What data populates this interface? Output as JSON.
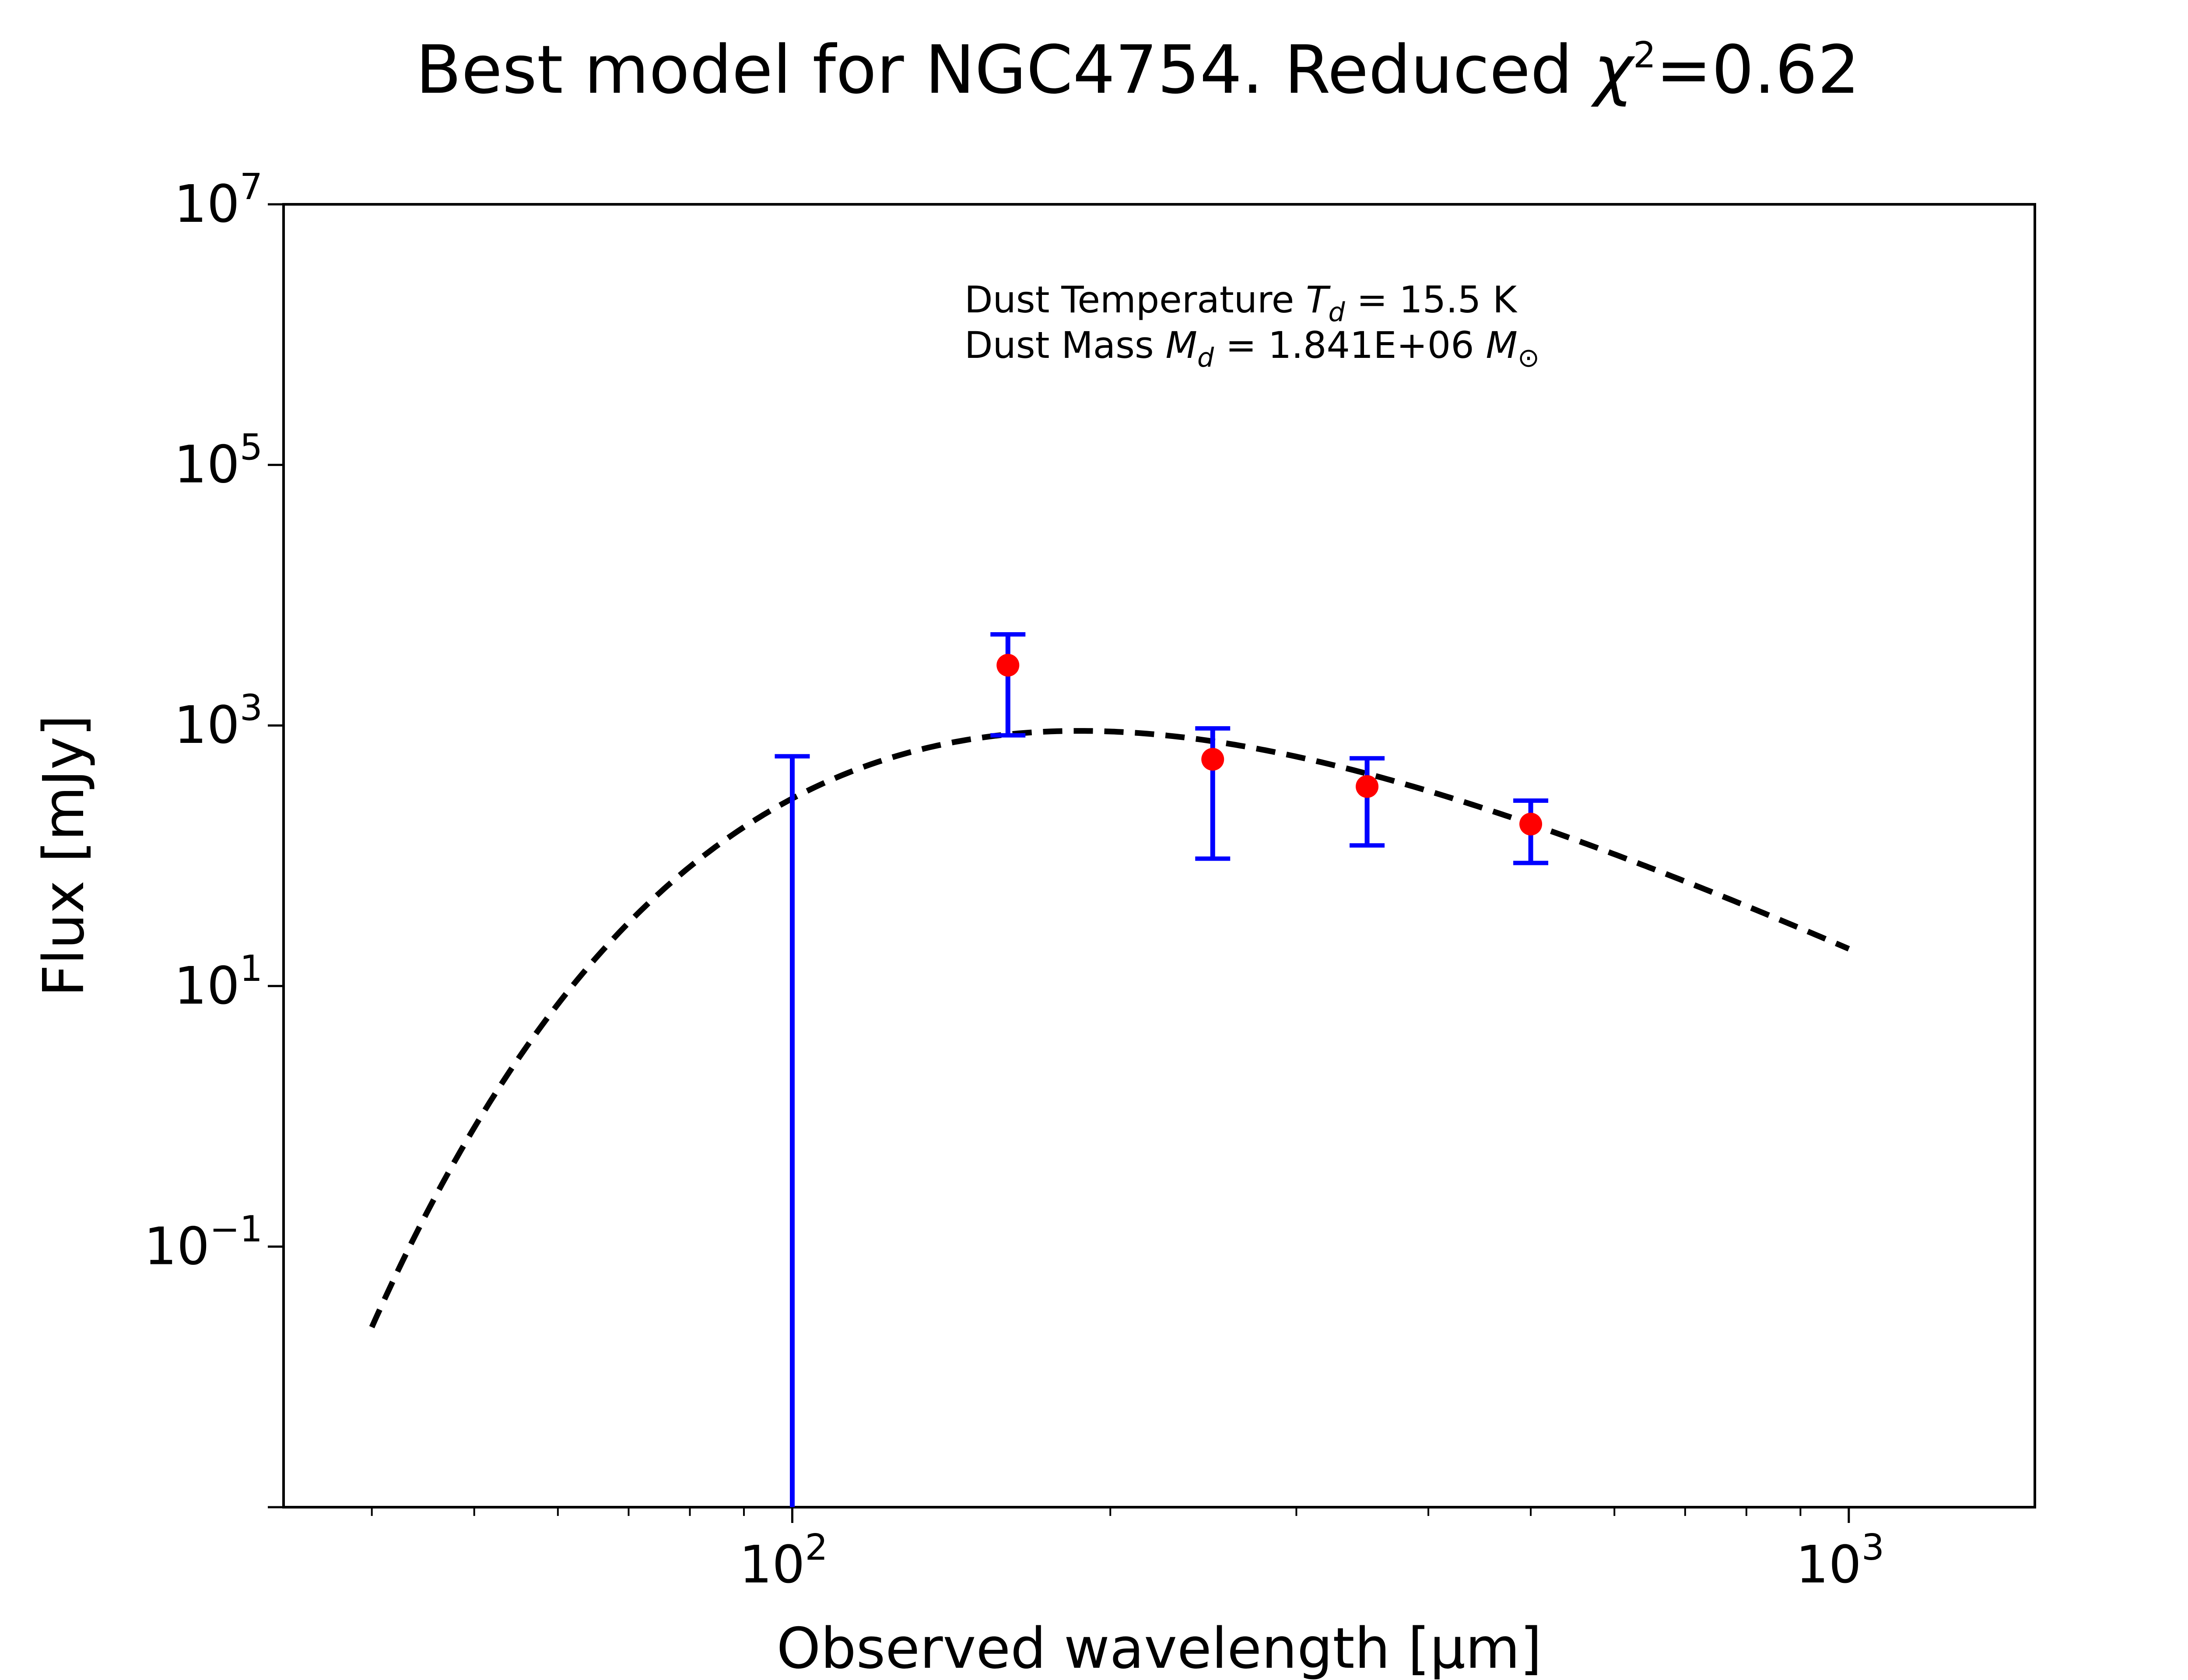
{
  "chart_data": {
    "type": "scatter",
    "title": "Best model for NGC4754. Reduced χ²=0.62",
    "title_parts": {
      "prefix": "Best model for NGC4754. Reduced ",
      "symbol": "χ",
      "sup": "2",
      "suffix": "=0.62"
    },
    "xlabel": "Observed wavelength [μm]",
    "ylabel": "Flux [mJy]",
    "xscale": "log",
    "yscale": "log",
    "xlim": [
      33,
      1500
    ],
    "ylim": [
      0.001,
      10000000
    ],
    "x_major_ticks": [
      {
        "value": 100,
        "base": "10",
        "exp": "2"
      },
      {
        "value": 1000,
        "base": "10",
        "exp": "3"
      }
    ],
    "y_major_ticks": [
      {
        "value": 0.1,
        "base": "10",
        "exp": "−1"
      },
      {
        "value": 10,
        "base": "10",
        "exp": "1"
      },
      {
        "value": 1000,
        "base": "10",
        "exp": "3"
      },
      {
        "value": 100000,
        "base": "10",
        "exp": "5"
      },
      {
        "value": 10000000,
        "base": "10",
        "exp": "7"
      }
    ],
    "grid": false,
    "annotations": {
      "line1": {
        "prefix": "Dust Temperature ",
        "sym": "T",
        "sub": "d",
        "suffix": " = 15.5 K"
      },
      "line2": {
        "prefix": "Dust Mass ",
        "sym": "M",
        "sub": "d",
        "mid": " = 1.841E+06 ",
        "sym2": "M",
        "sub2": "⊙"
      }
    },
    "series": [
      {
        "kind": "model-curve",
        "style": "dashed",
        "color": "#000000",
        "T_dust_K": 15.5,
        "x_range": [
          40,
          1000
        ],
        "norm": {
          "x": 500,
          "y": 175
        }
      },
      {
        "kind": "data-points",
        "color": "#ff0000",
        "errorbar_color": "#0000ff",
        "points": [
          {
            "x": 100,
            "y": null,
            "y_low": 0.001,
            "y_high": 580
          },
          {
            "x": 160,
            "y": 2900,
            "y_low": 840,
            "y_high": 5000
          },
          {
            "x": 250,
            "y": 550,
            "y_low": 95,
            "y_high": 950
          },
          {
            "x": 350,
            "y": 340,
            "y_low": 120,
            "y_high": 560
          },
          {
            "x": 500,
            "y": 175,
            "y_low": 88,
            "y_high": 265
          }
        ]
      }
    ]
  }
}
